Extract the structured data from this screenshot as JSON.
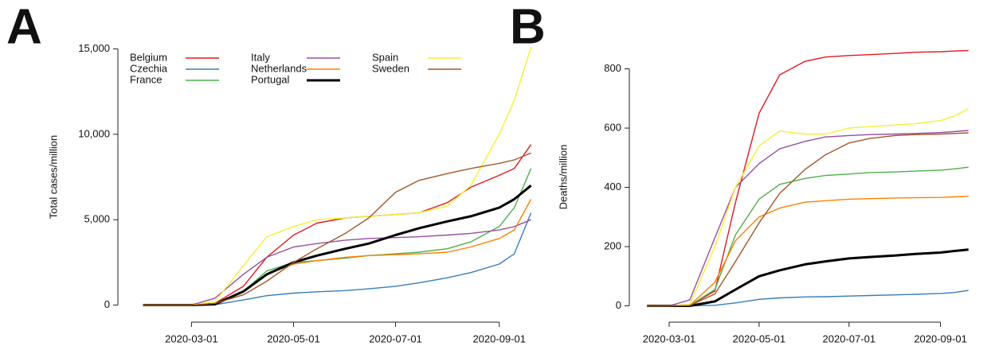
{
  "chart_data": [
    {
      "type": "line",
      "panel_label": "A",
      "y_label": "Total cases/million",
      "x": [
        "2020-02-01",
        "2020-02-15",
        "2020-03-01",
        "2020-03-15",
        "2020-04-01",
        "2020-04-15",
        "2020-05-01",
        "2020-05-15",
        "2020-06-01",
        "2020-06-15",
        "2020-07-01",
        "2020-07-15",
        "2020-08-01",
        "2020-08-15",
        "2020-09-01",
        "2020-09-10",
        "2020-09-20"
      ],
      "xlim": [
        "2020-01-17",
        "2020-09-24"
      ],
      "xticks": [
        "2020-03-01",
        "2020-05-01",
        "2020-07-01",
        "2020-09-01"
      ],
      "ylim": [
        -1000,
        16000
      ],
      "yticks": [
        0,
        {
          "value": 5000,
          "label": "5,000"
        },
        {
          "value": 10000,
          "label": "10,000"
        },
        {
          "value": 15000,
          "label": "15,000"
        }
      ],
      "series": [
        {
          "name": "Belgium",
          "color": "#e41a1c",
          "values": [
            0,
            0,
            0,
            100,
            1100,
            2800,
            4100,
            4800,
            5100,
            5200,
            5300,
            5400,
            6000,
            6900,
            7600,
            8000,
            9400
          ]
        },
        {
          "name": "Czechia",
          "color": "#377eb8",
          "values": [
            0,
            0,
            0,
            20,
            300,
            550,
            700,
            780,
            850,
            950,
            1100,
            1300,
            1600,
            1900,
            2400,
            3000,
            5400
          ]
        },
        {
          "name": "France",
          "color": "#4daf4a",
          "values": [
            0,
            0,
            0,
            100,
            800,
            2000,
            2500,
            2600,
            2750,
            2900,
            3000,
            3100,
            3300,
            3700,
            4600,
            5700,
            8000
          ]
        },
        {
          "name": "Italy",
          "color": "#984ea3",
          "values": [
            0,
            0,
            0,
            400,
            1800,
            2800,
            3400,
            3600,
            3800,
            3900,
            3950,
            4000,
            4100,
            4200,
            4400,
            4600,
            5000
          ]
        },
        {
          "name": "Netherlands",
          "color": "#ff7f00",
          "values": [
            0,
            0,
            0,
            100,
            800,
            1800,
            2400,
            2600,
            2800,
            2900,
            2950,
            3000,
            3100,
            3400,
            3900,
            4400,
            6200
          ]
        },
        {
          "name": "Portugal",
          "color": "#000000",
          "width": 3,
          "values": [
            0,
            0,
            0,
            50,
            800,
            1800,
            2500,
            2900,
            3300,
            3600,
            4100,
            4500,
            4900,
            5200,
            5700,
            6200,
            7000
          ]
        },
        {
          "name": "Spain",
          "color": "#f5f032",
          "values": [
            0,
            0,
            0,
            200,
            2300,
            4000,
            4600,
            5000,
            5100,
            5200,
            5300,
            5400,
            5800,
            7000,
            10000,
            12000,
            15100
          ]
        },
        {
          "name": "Sweden",
          "color": "#a65628",
          "values": [
            0,
            0,
            0,
            100,
            600,
            1400,
            2500,
            3300,
            4200,
            5100,
            6600,
            7300,
            7700,
            8000,
            8300,
            8500,
            8900
          ]
        }
      ]
    },
    {
      "type": "line",
      "panel_label": "B",
      "y_label": "Deaths/million",
      "x": [
        "2020-02-15",
        "2020-03-01",
        "2020-03-15",
        "2020-04-01",
        "2020-04-15",
        "2020-05-01",
        "2020-05-15",
        "2020-06-01",
        "2020-06-15",
        "2020-07-01",
        "2020-07-15",
        "2020-08-01",
        "2020-08-15",
        "2020-09-01",
        "2020-09-10",
        "2020-09-20"
      ],
      "xlim": [
        "2020-02-03",
        "2020-09-25"
      ],
      "xticks": [
        "2020-03-01",
        "2020-05-01",
        "2020-07-01",
        "2020-09-01"
      ],
      "ylim": [
        -55,
        925
      ],
      "yticks": [
        0,
        200,
        400,
        600,
        800
      ],
      "series": [
        {
          "color": "#e41a1c",
          "values": [
            0,
            0,
            1,
            50,
            350,
            650,
            780,
            825,
            840,
            845,
            848,
            852,
            856,
            858,
            860,
            862
          ]
        },
        {
          "color": "#377eb8",
          "values": [
            0,
            0,
            0,
            2,
            10,
            22,
            27,
            30,
            31,
            33,
            35,
            37,
            39,
            42,
            45,
            52
          ]
        },
        {
          "color": "#4daf4a",
          "values": [
            0,
            0,
            1,
            55,
            240,
            360,
            410,
            430,
            440,
            445,
            450,
            452,
            455,
            458,
            462,
            468
          ]
        },
        {
          "color": "#984ea3",
          "values": [
            0,
            0,
            20,
            230,
            400,
            480,
            530,
            555,
            570,
            575,
            578,
            580,
            582,
            585,
            588,
            592
          ]
        },
        {
          "color": "#ff7f00",
          "values": [
            0,
            0,
            1,
            80,
            220,
            300,
            330,
            350,
            355,
            360,
            362,
            364,
            365,
            366,
            368,
            370
          ]
        },
        {
          "color": "#000000",
          "width": 3,
          "values": [
            0,
            0,
            0,
            15,
            55,
            100,
            120,
            140,
            150,
            160,
            165,
            170,
            175,
            180,
            185,
            190
          ]
        },
        {
          "color": "#f5f032",
          "values": [
            0,
            0,
            5,
            200,
            400,
            540,
            590,
            580,
            580,
            600,
            605,
            610,
            615,
            625,
            640,
            665
          ]
        },
        {
          "color": "#a65628",
          "values": [
            0,
            0,
            1,
            40,
            150,
            280,
            380,
            460,
            510,
            550,
            565,
            575,
            578,
            580,
            582,
            584
          ]
        }
      ]
    }
  ]
}
